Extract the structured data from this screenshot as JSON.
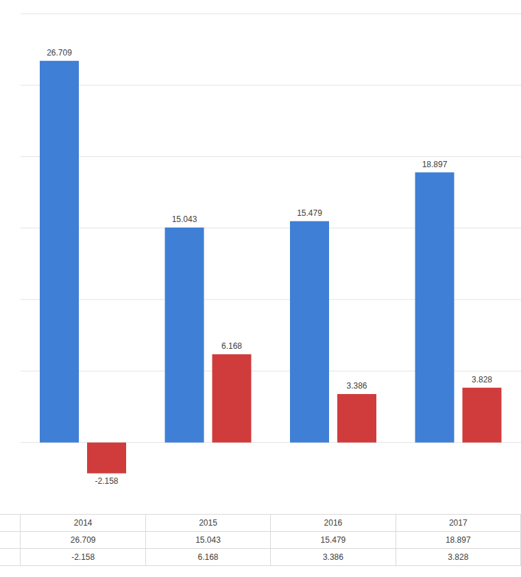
{
  "chart_data": {
    "type": "bar",
    "categories": [
      "2014",
      "2015",
      "2016",
      "2017"
    ],
    "series": [
      {
        "color": "#3f7fd6",
        "values": [
          26.709,
          15.043,
          15.479,
          18.897
        ]
      },
      {
        "color": "#d03c3c",
        "values": [
          -2.158,
          6.168,
          3.386,
          3.828
        ]
      }
    ],
    "ylim": [
      -5,
      30
    ],
    "yticks": [
      -5,
      0,
      5,
      10,
      15,
      20,
      25,
      30
    ],
    "grid": true,
    "data_labels": true,
    "tick_labels": false
  }
}
